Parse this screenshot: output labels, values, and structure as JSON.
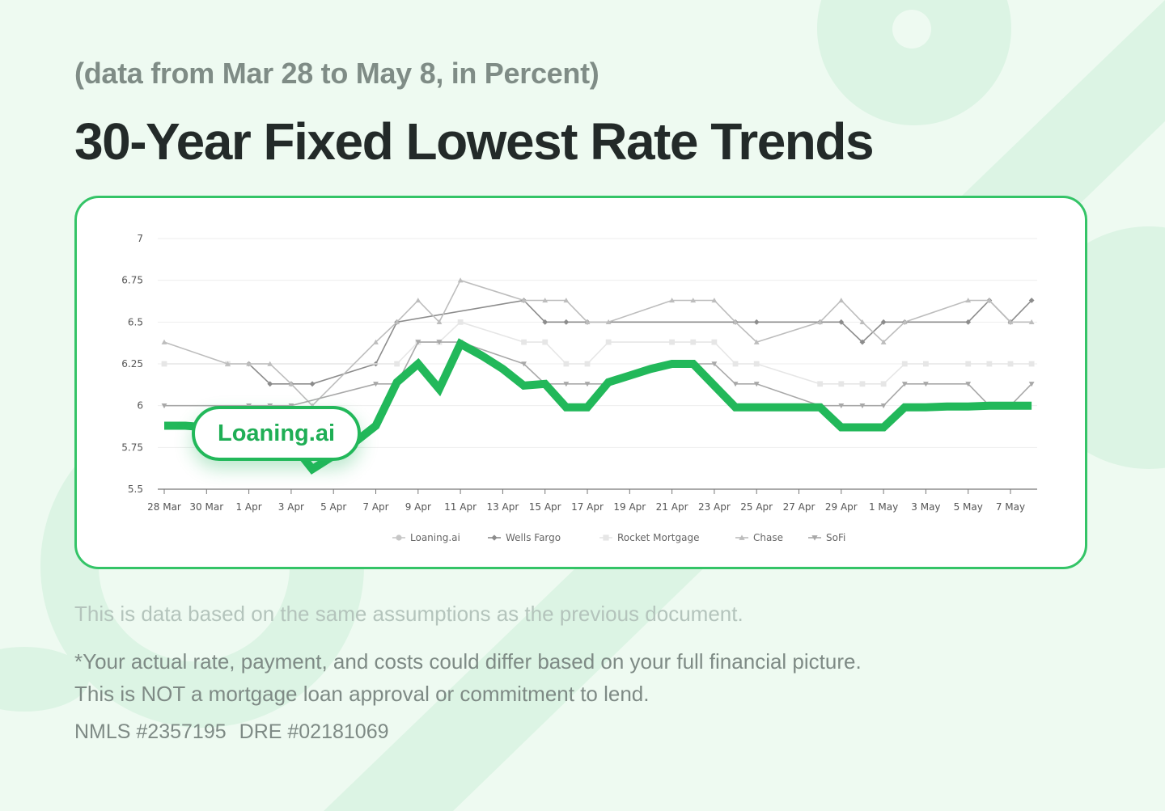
{
  "header": {
    "subtitle": "(data from Mar 28 to May 8, in Percent)",
    "title": "30-Year Fixed Lowest Rate Trends"
  },
  "badge": {
    "label": "Loaning.ai"
  },
  "footer": {
    "note": "This is data based on the same assumptions as the previous document.",
    "disclaimer_line1": "*Your actual rate, payment, and costs could differ based on your full financial picture.",
    "disclaimer_line2": "This is NOT a mortgage loan approval or commitment to lend.",
    "nmls": "NMLS #2357195",
    "dre": "DRE #02181069"
  },
  "colors": {
    "accent": "#22b85a",
    "card_border": "#34c467",
    "background": "#eefaf1"
  },
  "chart_data": {
    "type": "line",
    "title": "30-Year Fixed Lowest Rate Trends",
    "xlabel": "",
    "ylabel": "",
    "ylim": [
      5.5,
      7
    ],
    "y_ticks": [
      5.5,
      5.75,
      6,
      6.25,
      6.5,
      6.75,
      7
    ],
    "grid": true,
    "legend_position": "bottom-center",
    "x_tick_labels": [
      "28 Mar",
      "30 Mar",
      "1 Apr",
      "3 Apr",
      "5 Apr",
      "7 Apr",
      "9 Apr",
      "11 Apr",
      "13 Apr",
      "15 Apr",
      "17 Apr",
      "19 Apr",
      "21 Apr",
      "23 Apr",
      "25 Apr",
      "27 Apr",
      "29 Apr",
      "1 May",
      "3 May",
      "5 May",
      "7 May"
    ],
    "x": [
      "28 Mar",
      "29 Mar",
      "30 Mar",
      "31 Mar",
      "1 Apr",
      "2 Apr",
      "3 Apr",
      "4 Apr",
      "5 Apr",
      "6 Apr",
      "7 Apr",
      "8 Apr",
      "9 Apr",
      "10 Apr",
      "11 Apr",
      "12 Apr",
      "13 Apr",
      "14 Apr",
      "15 Apr",
      "16 Apr",
      "17 Apr",
      "18 Apr",
      "19 Apr",
      "20 Apr",
      "21 Apr",
      "22 Apr",
      "23 Apr",
      "24 Apr",
      "25 Apr",
      "26 Apr",
      "27 Apr",
      "28 Apr",
      "29 Apr",
      "30 Apr",
      "1 May",
      "2 May",
      "3 May",
      "4 May",
      "5 May",
      "6 May",
      "7 May",
      "8 May"
    ],
    "series": [
      {
        "name": "Loaning.ai",
        "color": "#22b85a",
        "marker": "circle",
        "emphasis": true,
        "values": [
          5.88,
          5.88,
          5.87,
          5.86,
          5.85,
          5.82,
          5.78,
          5.62,
          5.7,
          5.78,
          5.88,
          6.14,
          6.25,
          6.1,
          6.37,
          6.3,
          6.22,
          6.12,
          6.13,
          5.99,
          5.99,
          6.14,
          6.18,
          6.22,
          6.25,
          6.25,
          6.12,
          5.99,
          5.99,
          5.99,
          5.99,
          5.99,
          5.87,
          5.87,
          5.87,
          5.99,
          5.99,
          5.995,
          5.995,
          6.0,
          6.0,
          6.0
        ]
      },
      {
        "name": "Wells Fargo",
        "color": "#8c8c8c",
        "marker": "diamond",
        "values": [
          null,
          null,
          null,
          null,
          6.25,
          6.13,
          6.13,
          6.13,
          null,
          null,
          6.25,
          6.5,
          null,
          null,
          null,
          null,
          null,
          6.63,
          6.5,
          6.5,
          6.5,
          null,
          null,
          null,
          null,
          null,
          null,
          6.5,
          6.5,
          null,
          null,
          6.5,
          6.5,
          6.38,
          6.5,
          6.5,
          null,
          null,
          6.5,
          6.63,
          6.5,
          6.63
        ]
      },
      {
        "name": "Rocket Mortgage",
        "color": "#e6e6e6",
        "marker": "square",
        "values": [
          6.25,
          null,
          null,
          6.25,
          null,
          null,
          null,
          null,
          null,
          null,
          null,
          6.25,
          6.38,
          6.38,
          6.5,
          null,
          null,
          6.38,
          6.38,
          6.25,
          6.25,
          6.38,
          null,
          null,
          6.38,
          6.38,
          6.38,
          6.25,
          6.25,
          null,
          null,
          6.13,
          6.13,
          6.13,
          6.13,
          6.25,
          6.25,
          null,
          6.25,
          6.25,
          6.25,
          6.25
        ]
      },
      {
        "name": "Chase",
        "color": "#bdbdbd",
        "marker": "triangle-up",
        "values": [
          6.38,
          null,
          null,
          6.25,
          6.25,
          6.25,
          6.13,
          6.0,
          null,
          null,
          6.38,
          6.5,
          6.63,
          6.5,
          6.75,
          null,
          null,
          6.63,
          6.63,
          6.63,
          6.5,
          6.5,
          null,
          null,
          6.63,
          6.63,
          6.63,
          6.5,
          6.38,
          null,
          null,
          6.5,
          6.63,
          6.5,
          6.38,
          6.5,
          null,
          null,
          6.63,
          6.63,
          6.5,
          6.5
        ]
      },
      {
        "name": "SoFi",
        "color": "#a8a8a8",
        "marker": "triangle-down",
        "values": [
          6.0,
          null,
          null,
          null,
          6.0,
          6.0,
          6.0,
          null,
          null,
          null,
          6.13,
          6.13,
          6.38,
          6.38,
          6.38,
          null,
          null,
          6.25,
          6.13,
          6.13,
          6.13,
          6.13,
          null,
          null,
          6.25,
          6.25,
          6.25,
          6.13,
          6.13,
          null,
          null,
          6.0,
          6.0,
          6.0,
          6.0,
          6.13,
          6.13,
          null,
          6.13,
          6.0,
          6.0,
          6.13
        ]
      }
    ]
  }
}
